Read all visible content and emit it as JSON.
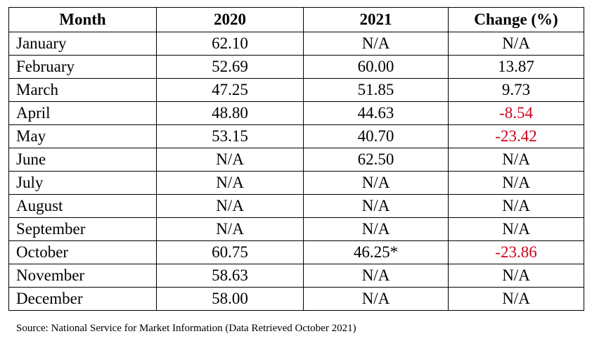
{
  "table": {
    "headers": [
      "Month",
      "2020",
      "2021",
      "Change (%)"
    ],
    "rows": [
      {
        "month": "January",
        "y2020": "62.10",
        "y2021": "N/A",
        "change": "N/A",
        "negative": false
      },
      {
        "month": "February",
        "y2020": "52.69",
        "y2021": "60.00",
        "change": "13.87",
        "negative": false
      },
      {
        "month": "March",
        "y2020": "47.25",
        "y2021": "51.85",
        "change": "9.73",
        "negative": false
      },
      {
        "month": "April",
        "y2020": "48.80",
        "y2021": "44.63",
        "change": "-8.54",
        "negative": true
      },
      {
        "month": "May",
        "y2020": "53.15",
        "y2021": "40.70",
        "change": "-23.42",
        "negative": true
      },
      {
        "month": "June",
        "y2020": "N/A",
        "y2021": "62.50",
        "change": "N/A",
        "negative": false
      },
      {
        "month": "July",
        "y2020": "N/A",
        "y2021": "N/A",
        "change": "N/A",
        "negative": false
      },
      {
        "month": "August",
        "y2020": "N/A",
        "y2021": "N/A",
        "change": "N/A",
        "negative": false
      },
      {
        "month": "September",
        "y2020": "N/A",
        "y2021": "N/A",
        "change": "N/A",
        "negative": false
      },
      {
        "month": "October",
        "y2020": "60.75",
        "y2021": "46.25*",
        "change": "-23.86",
        "negative": true
      },
      {
        "month": "November",
        "y2020": "58.63",
        "y2021": "N/A",
        "change": "N/A",
        "negative": false
      },
      {
        "month": "December",
        "y2020": "58.00",
        "y2021": "N/A",
        "change": "N/A",
        "negative": false
      }
    ]
  },
  "source_note": "Source: National Service for Market Information (Data Retrieved October 2021)",
  "colors": {
    "negative": "#d0021b",
    "text": "#000000",
    "border": "#000000"
  }
}
